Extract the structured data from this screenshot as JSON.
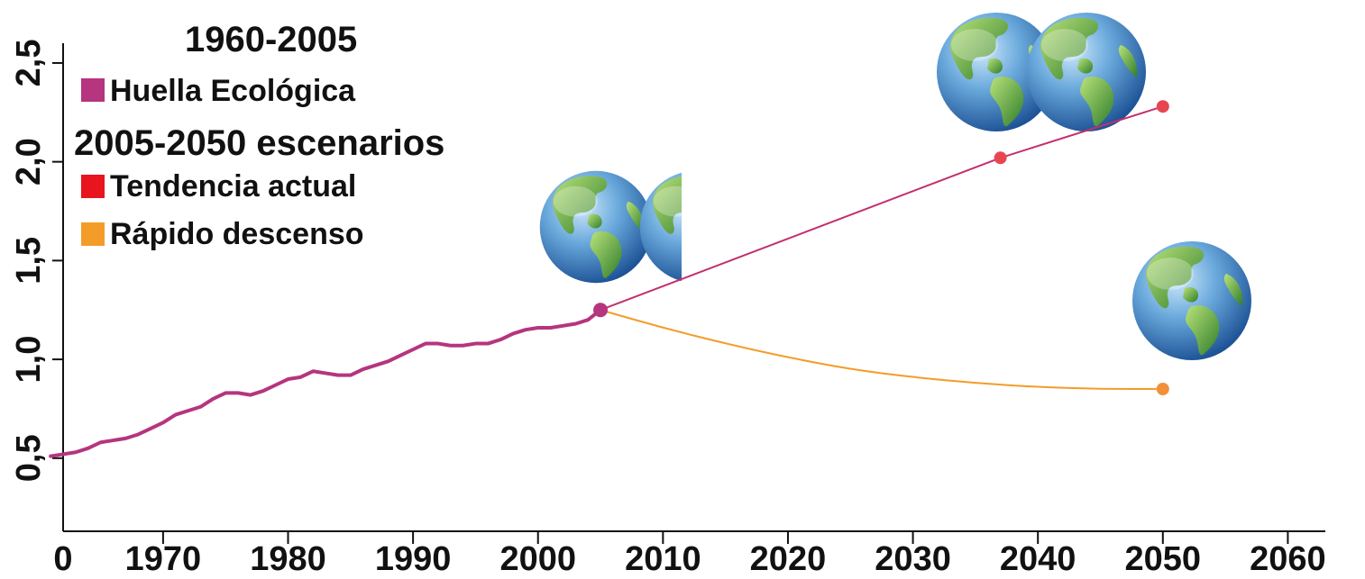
{
  "chart_data": {
    "type": "line",
    "x_ticks": [
      "0",
      "1970",
      "1980",
      "1990",
      "2000",
      "2010",
      "2020",
      "2030",
      "2040",
      "2050",
      "2060"
    ],
    "y_ticks": [
      "0,5",
      "1,0",
      "1,5",
      "2,0",
      "2,5"
    ],
    "xlim": [
      1962,
      2063
    ],
    "ylim": [
      0.13,
      2.6
    ],
    "grid": false,
    "legend": {
      "placement": "top-left",
      "groups": [
        {
          "heading": "1960-2005",
          "entries": [
            {
              "label": "Huella Ecológica",
              "color": "#b5357f"
            }
          ]
        },
        {
          "heading": "2005-2050 escenarios",
          "entries": [
            {
              "label": "Tendencia actual",
              "color": "#e8141e"
            },
            {
              "label": "Rápido descenso",
              "color": "#f39c2a"
            }
          ]
        }
      ]
    },
    "series": [
      {
        "name": "Huella Ecológica",
        "color": "#b5357f",
        "x": [
          1961,
          1962,
          1963,
          1964,
          1965,
          1966,
          1967,
          1968,
          1969,
          1970,
          1971,
          1972,
          1973,
          1974,
          1975,
          1976,
          1977,
          1978,
          1979,
          1980,
          1981,
          1982,
          1983,
          1984,
          1985,
          1986,
          1987,
          1988,
          1989,
          1990,
          1991,
          1992,
          1993,
          1994,
          1995,
          1996,
          1997,
          1998,
          1999,
          2000,
          2001,
          2002,
          2003,
          2004,
          2005
        ],
        "y": [
          0.51,
          0.52,
          0.53,
          0.55,
          0.58,
          0.59,
          0.6,
          0.62,
          0.65,
          0.68,
          0.72,
          0.74,
          0.76,
          0.8,
          0.83,
          0.83,
          0.82,
          0.84,
          0.87,
          0.9,
          0.91,
          0.94,
          0.93,
          0.92,
          0.92,
          0.95,
          0.97,
          0.99,
          1.02,
          1.05,
          1.08,
          1.08,
          1.07,
          1.07,
          1.08,
          1.08,
          1.1,
          1.13,
          1.15,
          1.16,
          1.16,
          1.17,
          1.18,
          1.2,
          1.25
        ]
      },
      {
        "name": "Tendencia actual",
        "color": "#e8141e",
        "x": [
          2005,
          2037,
          2050
        ],
        "y": [
          1.25,
          2.02,
          2.28
        ]
      },
      {
        "name": "Rápido descenso",
        "color": "#f39c2a",
        "x": [
          2005,
          2010,
          2015,
          2020,
          2025,
          2030,
          2035,
          2040,
          2045,
          2050
        ],
        "y": [
          1.25,
          1.16,
          1.08,
          1.01,
          0.95,
          0.91,
          0.88,
          0.86,
          0.85,
          0.85
        ]
      }
    ],
    "markers": [
      {
        "series": "Huella Ecológica",
        "x": 2005,
        "y": 1.25
      },
      {
        "series": "Tendencia actual",
        "x": 2037,
        "y": 2.02
      },
      {
        "series": "Tendencia actual",
        "x": 2050,
        "y": 2.28
      },
      {
        "series": "Rápido descenso",
        "x": 2050,
        "y": 0.85
      }
    ],
    "planet_icons": [
      {
        "icon": "earth-globe-icon",
        "count": 1.5,
        "near_x": 2005
      },
      {
        "icon": "earth-globe-icon",
        "count": 2,
        "near_x": 2037
      },
      {
        "icon": "earth-globe-icon",
        "count": 1,
        "near_x": 2050
      }
    ]
  }
}
